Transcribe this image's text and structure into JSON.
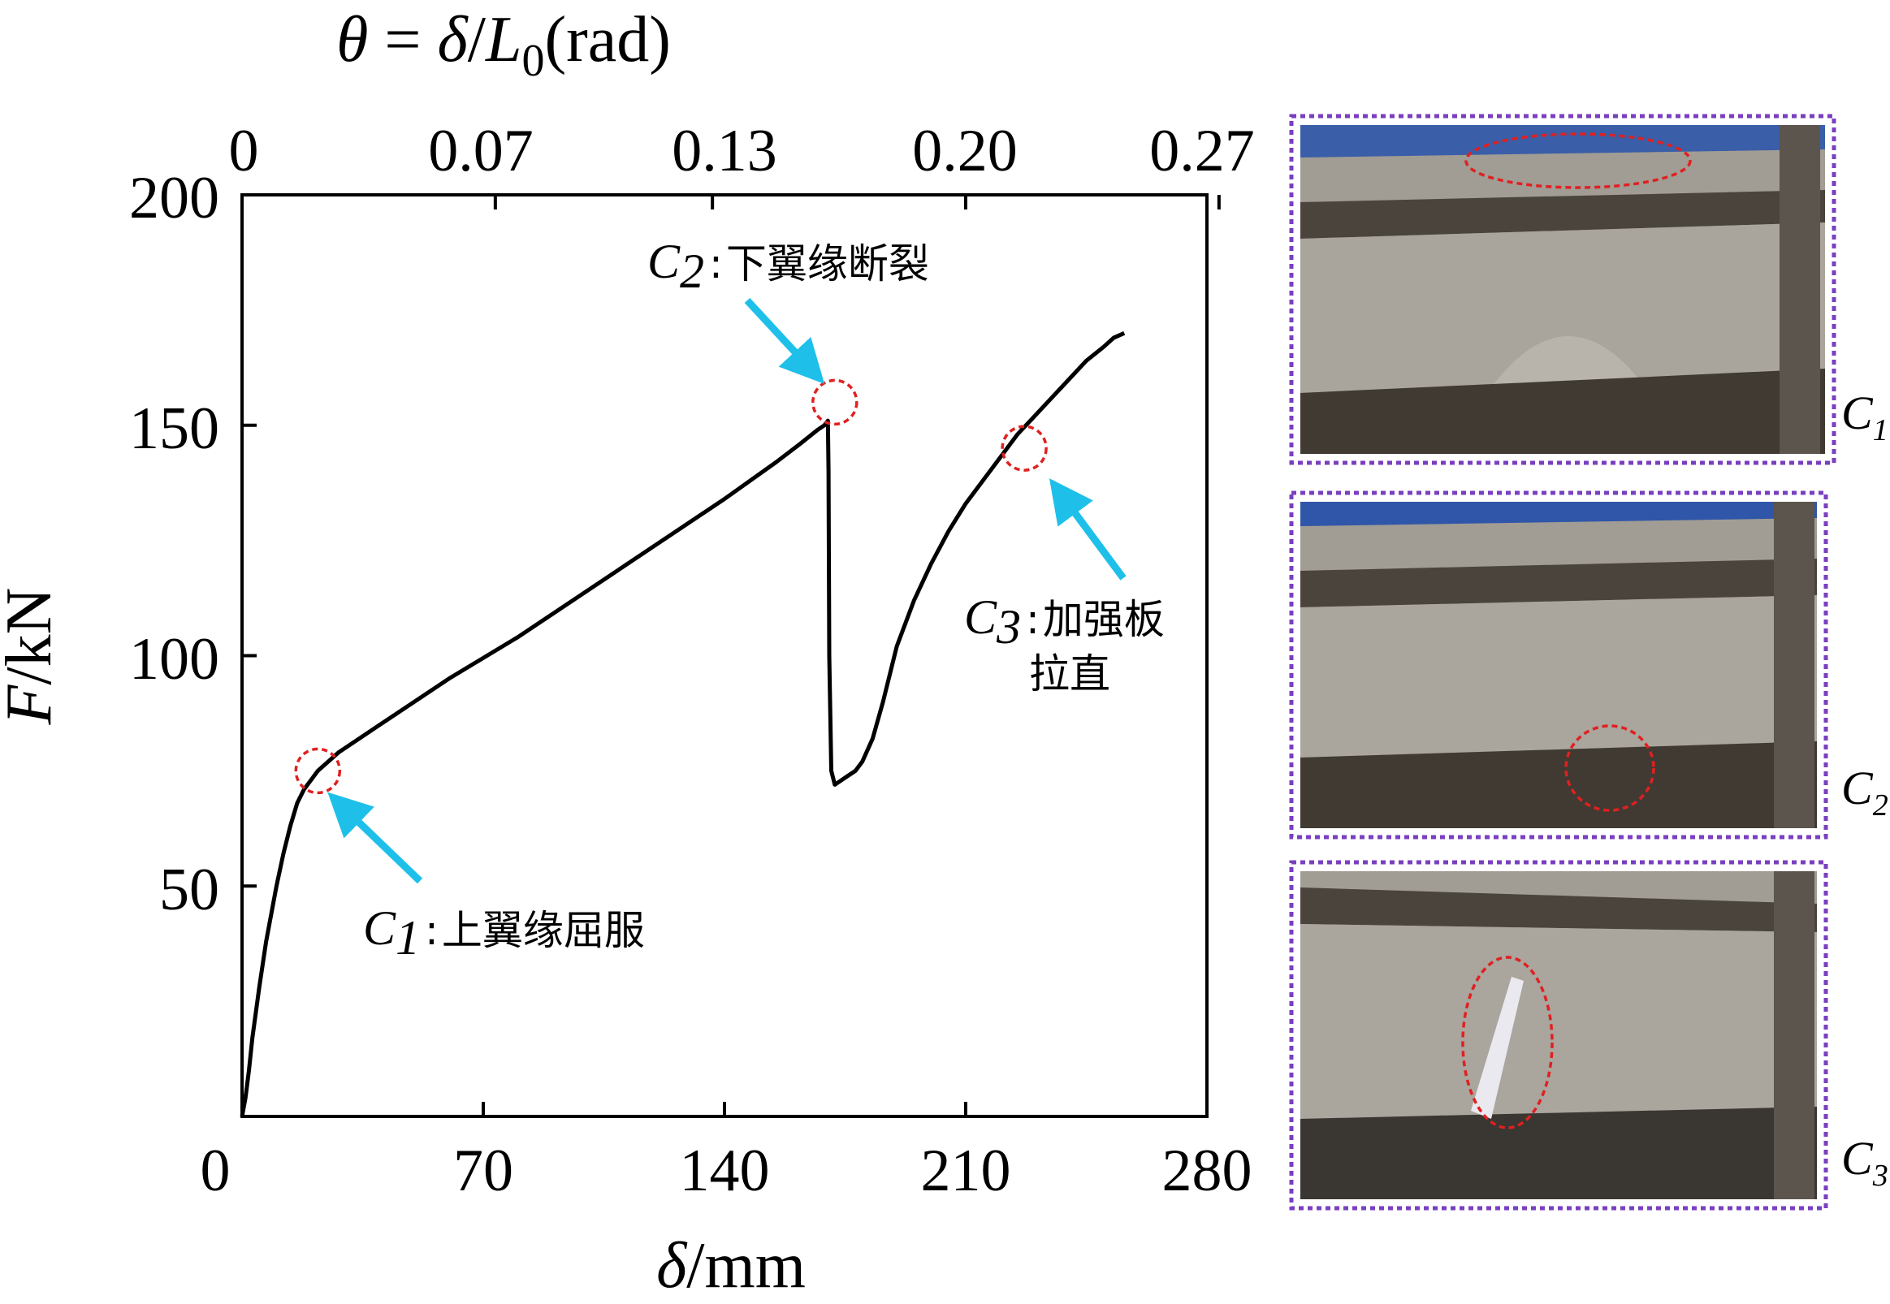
{
  "colors": {
    "curve": "#000000",
    "arrow": "#1ec0ea",
    "marker": "#e02020",
    "panel_border": "#7a3fc0",
    "photo_bg": "#8d8a84",
    "photo_dark": "#3a3631",
    "photo_blue": "#2f56a8"
  },
  "chart_data": {
    "type": "line",
    "title": "",
    "xlabel": "δ/mm",
    "ylabel": "F/kN",
    "xlabel_var": "δ",
    "xlabel_unit": "/mm",
    "ylabel_var": "F",
    "ylabel_unit": "/kN",
    "top_axis_label": "θ = δ/L0(rad)",
    "top_axis_label_parts": {
      "theta": "θ",
      "eq": " = ",
      "delta": "δ",
      "slash": "/",
      "L": "L",
      "sub": "0",
      "unit": "(rad)"
    },
    "xlim": [
      0,
      280
    ],
    "ylim": [
      0,
      200
    ],
    "x_ticks": [
      0,
      70,
      140,
      210,
      280
    ],
    "x_tick_labels": [
      "70",
      "140",
      "210",
      "280"
    ],
    "origin_label": "0",
    "y_ticks": [
      0,
      50,
      100,
      150,
      200
    ],
    "y_tick_labels": [
      "50",
      "100",
      "150",
      "200"
    ],
    "top_ticks": [
      0,
      0.07,
      0.13,
      0.2,
      0.27
    ],
    "top_tick_labels": [
      "0",
      "0.07",
      "0.13",
      "0.20",
      "0.27"
    ],
    "series": [
      {
        "name": "F-δ",
        "x": [
          0,
          1,
          2,
          3,
          5,
          7,
          10,
          12,
          14,
          16,
          18,
          20,
          22,
          25,
          28,
          32,
          40,
          50,
          60,
          80,
          100,
          120,
          140,
          155,
          162,
          167,
          169,
          170,
          170.2,
          170.4,
          171,
          172,
          174,
          176,
          178,
          180,
          183,
          186,
          190,
          195,
          200,
          205,
          210,
          215,
          220,
          225,
          230,
          235,
          240,
          245,
          250,
          253,
          256
        ],
        "y": [
          0,
          4,
          10,
          17,
          28,
          38,
          50,
          57,
          63,
          68,
          71,
          73,
          75,
          77,
          79,
          81,
          85,
          90,
          95,
          104,
          114,
          124,
          134,
          142,
          146,
          149,
          150,
          151,
          140,
          100,
          75,
          72,
          73,
          74,
          75,
          77,
          82,
          90,
          102,
          112,
          120,
          127,
          133,
          138,
          143,
          148,
          152,
          156,
          160,
          164,
          167,
          169,
          170
        ]
      }
    ],
    "annotations": [
      {
        "id": "C1",
        "var": "C",
        "sub": "1",
        "text": "上翼缘屈服",
        "point": [
          22,
          75
        ]
      },
      {
        "id": "C2",
        "var": "C",
        "sub": "2",
        "text": "下翼缘断裂",
        "point": [
          172,
          155
        ]
      },
      {
        "id": "C3",
        "var": "C",
        "sub": "3",
        "text_line1": "加强板",
        "text_line2": "拉直",
        "point": [
          227,
          145
        ]
      }
    ]
  },
  "panels": [
    {
      "label_var": "C",
      "label_sub": "1"
    },
    {
      "label_var": "C",
      "label_sub": "2"
    },
    {
      "label_var": "C",
      "label_sub": "3"
    }
  ]
}
